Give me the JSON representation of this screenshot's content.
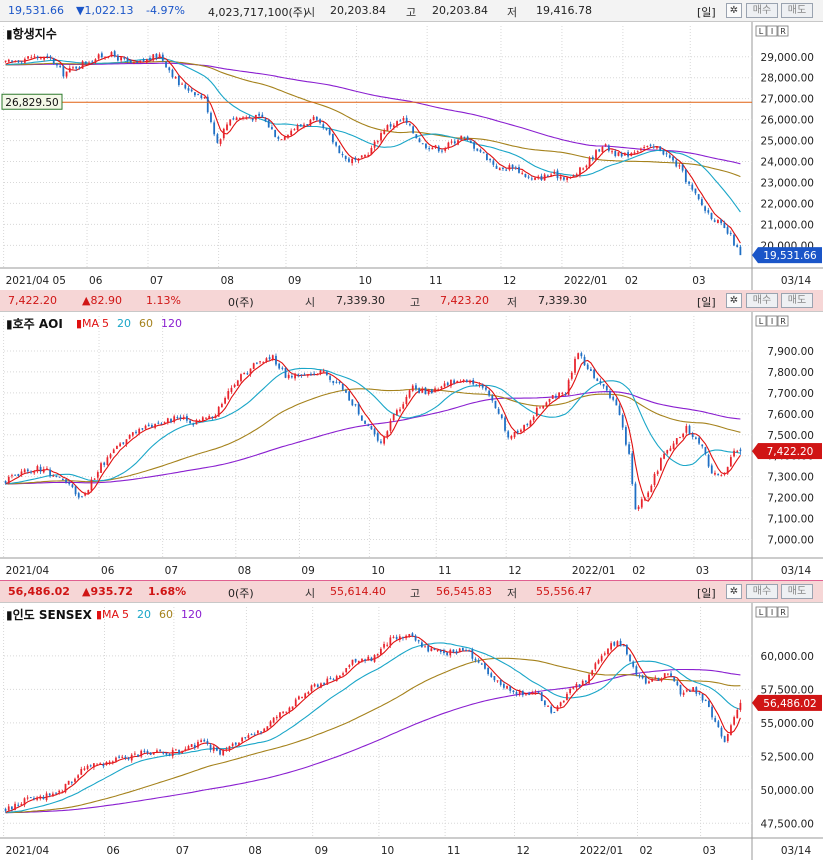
{
  "panels": [
    {
      "id": "hsi",
      "header": {
        "price": "19,531.66",
        "change": "▼1,022.13",
        "pct": "-4.97%",
        "volume": "4,023,717,100(주)",
        "open_label": "시",
        "open": "20,203.84",
        "high_label": "고",
        "high": "20,203.84",
        "low_label": "저",
        "low": "19,416.78",
        "period_btn": "[일]",
        "buy_btn": "매수",
        "sell_btn": "매도",
        "price_color": "blue"
      },
      "title": "항생지수",
      "ma_legend": null,
      "horizontal_line_label": "26,829.50",
      "last_price_label": "19,531.66",
      "last_label_color": "#1a55c8",
      "date_right": "03/14"
    },
    {
      "id": "aoi",
      "header": {
        "price": "7,422.20",
        "change": "▲82.90",
        "pct": "1.13%",
        "volume": "0(주)",
        "open_label": "시",
        "open": "7,339.30",
        "high_label": "고",
        "high": "7,423.20",
        "low_label": "저",
        "low": "7,339.30",
        "period_btn": "[일]",
        "buy_btn": "매수",
        "sell_btn": "매도",
        "price_color": "red"
      },
      "title": "호주 AOI",
      "ma_legend": {
        "prefix": "MA",
        "items": [
          "5",
          "20",
          "60",
          "120"
        ]
      },
      "horizontal_line_label": null,
      "last_price_label": "7,422.20",
      "last_label_color": "#d01515",
      "date_right": "03/14"
    },
    {
      "id": "sensex",
      "header": {
        "price": "56,486.02",
        "change": "▲935.72",
        "pct": "1.68%",
        "volume": "0(주)",
        "open_label": "시",
        "open": "55,614.40",
        "high_label": "고",
        "high": "56,545.83",
        "low_label": "저",
        "low": "55,556.47",
        "period_btn": "[일]",
        "buy_btn": "매수",
        "sell_btn": "매도",
        "price_color": "red"
      },
      "title": "인도 SENSEX",
      "ma_legend": {
        "prefix": "MA",
        "items": [
          "5",
          "20",
          "60",
          "120"
        ]
      },
      "horizontal_line_label": null,
      "last_price_label": "56,486.02",
      "last_label_color": "#d01515",
      "date_right": "03/14"
    }
  ],
  "colors": {
    "up": "#e8242d",
    "down": "#1f6fc4",
    "ma5": "#e01010",
    "ma20": "#1aa6c8",
    "ma60": "#a5821c",
    "ma120": "#8a1fd0",
    "hline": "#e06010",
    "grid": "#d8d8d8"
  },
  "chart_data": [
    {
      "type": "candlestick",
      "title": "항생지수",
      "x_tick_labels": [
        "2021/04 05",
        "06",
        "07",
        "08",
        "09",
        "10",
        "11",
        "12",
        "2022/01",
        "02",
        "03"
      ],
      "x_tick_pos": [
        0,
        26,
        45,
        67,
        88,
        110,
        132,
        155,
        174,
        193,
        214
      ],
      "n_days": 230,
      "ylim": [
        19300,
        29800
      ],
      "y_ticks": [
        20000,
        21000,
        22000,
        23000,
        24000,
        25000,
        26000,
        27000,
        28000,
        29000
      ],
      "y_tick_labels": [
        "20,000.00",
        "21,000.00",
        "22,000.00",
        "23,000.00",
        "24,000.00",
        "25,000.00",
        "26,000.00",
        "27,000.00",
        "28,000.00",
        "29,000.00"
      ],
      "horizontal_line": 26829.5,
      "last_value": 19531.66,
      "anchors": [
        [
          0,
          28700
        ],
        [
          8,
          29000
        ],
        [
          14,
          28900
        ],
        [
          18,
          28200
        ],
        [
          24,
          28700
        ],
        [
          32,
          29150
        ],
        [
          40,
          28600
        ],
        [
          48,
          29100
        ],
        [
          54,
          27700
        ],
        [
          58,
          27400
        ],
        [
          62,
          27000
        ],
        [
          66,
          24900
        ],
        [
          70,
          26100
        ],
        [
          80,
          26100
        ],
        [
          85,
          25100
        ],
        [
          90,
          25600
        ],
        [
          96,
          26000
        ],
        [
          100,
          25400
        ],
        [
          106,
          24100
        ],
        [
          110,
          24000
        ],
        [
          114,
          24600
        ],
        [
          118,
          25600
        ],
        [
          124,
          26000
        ],
        [
          130,
          24800
        ],
        [
          136,
          24600
        ],
        [
          142,
          25200
        ],
        [
          148,
          24500
        ],
        [
          154,
          23600
        ],
        [
          158,
          23800
        ],
        [
          164,
          23100
        ],
        [
          170,
          23400
        ],
        [
          176,
          23200
        ],
        [
          180,
          23700
        ],
        [
          186,
          24800
        ],
        [
          192,
          24200
        ],
        [
          198,
          24700
        ],
        [
          204,
          24600
        ],
        [
          210,
          23700
        ],
        [
          214,
          22600
        ],
        [
          218,
          21700
        ],
        [
          222,
          21100
        ],
        [
          226,
          20400
        ],
        [
          229,
          19531
        ]
      ],
      "series": [
        {
          "name": "MA5",
          "ma": 5
        },
        {
          "name": "MA20",
          "ma": 20
        },
        {
          "name": "MA60",
          "ma": 60
        },
        {
          "name": "MA120",
          "ma": 120
        }
      ]
    },
    {
      "type": "candlestick",
      "title": "호주 AOI",
      "x_tick_labels": [
        "2021/04",
        "06",
        "07",
        "08",
        "09",
        "10",
        "11",
        "12",
        "2022/01",
        "02",
        "03"
      ],
      "x_tick_pos": [
        0,
        30,
        50,
        73,
        93,
        115,
        136,
        158,
        178,
        197,
        217
      ],
      "n_days": 232,
      "ylim": [
        6950,
        8000
      ],
      "y_ticks": [
        7000,
        7100,
        7200,
        7300,
        7400,
        7500,
        7600,
        7700,
        7800,
        7900
      ],
      "y_tick_labels": [
        "7,000.00",
        "7,100.00",
        "7,200.00",
        "7,300.00",
        "7,400.00",
        "7,500.00",
        "7,600.00",
        "7,700.00",
        "7,800.00",
        "7,900.00"
      ],
      "last_value": 7422.2,
      "anchors": [
        [
          0,
          7280
        ],
        [
          6,
          7330
        ],
        [
          12,
          7340
        ],
        [
          18,
          7280
        ],
        [
          24,
          7200
        ],
        [
          30,
          7350
        ],
        [
          36,
          7450
        ],
        [
          42,
          7530
        ],
        [
          48,
          7560
        ],
        [
          54,
          7580
        ],
        [
          60,
          7560
        ],
        [
          66,
          7600
        ],
        [
          72,
          7750
        ],
        [
          78,
          7830
        ],
        [
          84,
          7870
        ],
        [
          88,
          7780
        ],
        [
          94,
          7780
        ],
        [
          100,
          7800
        ],
        [
          106,
          7720
        ],
        [
          110,
          7630
        ],
        [
          114,
          7530
        ],
        [
          118,
          7470
        ],
        [
          122,
          7590
        ],
        [
          128,
          7720
        ],
        [
          134,
          7700
        ],
        [
          140,
          7760
        ],
        [
          146,
          7750
        ],
        [
          152,
          7700
        ],
        [
          158,
          7500
        ],
        [
          162,
          7520
        ],
        [
          168,
          7640
        ],
        [
          172,
          7680
        ],
        [
          176,
          7700
        ],
        [
          180,
          7900
        ],
        [
          184,
          7790
        ],
        [
          188,
          7740
        ],
        [
          192,
          7640
        ],
        [
          196,
          7400
        ],
        [
          198,
          7150
        ],
        [
          202,
          7220
        ],
        [
          206,
          7380
        ],
        [
          210,
          7450
        ],
        [
          214,
          7530
        ],
        [
          218,
          7470
        ],
        [
          222,
          7320
        ],
        [
          226,
          7320
        ],
        [
          229,
          7420
        ]
      ],
      "series": [
        {
          "name": "MA5",
          "ma": 5
        },
        {
          "name": "MA20",
          "ma": 20
        },
        {
          "name": "MA60",
          "ma": 60
        },
        {
          "name": "MA120",
          "ma": 120
        }
      ]
    },
    {
      "type": "candlestick",
      "title": "인도 SENSEX",
      "x_tick_labels": [
        "2021/04",
        "06",
        "07",
        "08",
        "09",
        "10",
        "11",
        "12",
        "2022/01",
        "02",
        "03"
      ],
      "x_tick_pos": [
        0,
        32,
        54,
        77,
        98,
        119,
        140,
        162,
        182,
        201,
        221
      ],
      "n_days": 234,
      "ylim": [
        47000,
        62600
      ],
      "y_ticks": [
        47500,
        50000,
        52500,
        55000,
        57500,
        60000
      ],
      "y_tick_labels": [
        "47,500.00",
        "50,000.00",
        "52,500.00",
        "55,000.00",
        "57,500.00",
        "60,000.00"
      ],
      "last_value": 56486.02,
      "anchors": [
        [
          0,
          48500
        ],
        [
          6,
          49200
        ],
        [
          12,
          49500
        ],
        [
          18,
          50000
        ],
        [
          24,
          51500
        ],
        [
          30,
          51900
        ],
        [
          36,
          52300
        ],
        [
          44,
          52800
        ],
        [
          50,
          52700
        ],
        [
          56,
          52900
        ],
        [
          62,
          53500
        ],
        [
          68,
          52800
        ],
        [
          74,
          53600
        ],
        [
          80,
          54200
        ],
        [
          86,
          55500
        ],
        [
          92,
          56600
        ],
        [
          98,
          57800
        ],
        [
          104,
          58300
        ],
        [
          110,
          59500
        ],
        [
          116,
          59800
        ],
        [
          122,
          61200
        ],
        [
          128,
          61500
        ],
        [
          134,
          60500
        ],
        [
          140,
          60200
        ],
        [
          146,
          60500
        ],
        [
          150,
          59500
        ],
        [
          154,
          58300
        ],
        [
          158,
          57800
        ],
        [
          164,
          57100
        ],
        [
          168,
          57300
        ],
        [
          174,
          55700
        ],
        [
          178,
          57200
        ],
        [
          184,
          58200
        ],
        [
          188,
          59800
        ],
        [
          192,
          61000
        ],
        [
          196,
          60800
        ],
        [
          200,
          58500
        ],
        [
          204,
          58000
        ],
        [
          210,
          58600
        ],
        [
          214,
          57300
        ],
        [
          218,
          57500
        ],
        [
          222,
          56500
        ],
        [
          226,
          54500
        ],
        [
          228,
          53500
        ],
        [
          231,
          55500
        ],
        [
          233,
          56486
        ]
      ],
      "series": [
        {
          "name": "MA5",
          "ma": 5
        },
        {
          "name": "MA20",
          "ma": 20
        },
        {
          "name": "MA60",
          "ma": 60
        },
        {
          "name": "MA120",
          "ma": 120
        }
      ]
    }
  ]
}
